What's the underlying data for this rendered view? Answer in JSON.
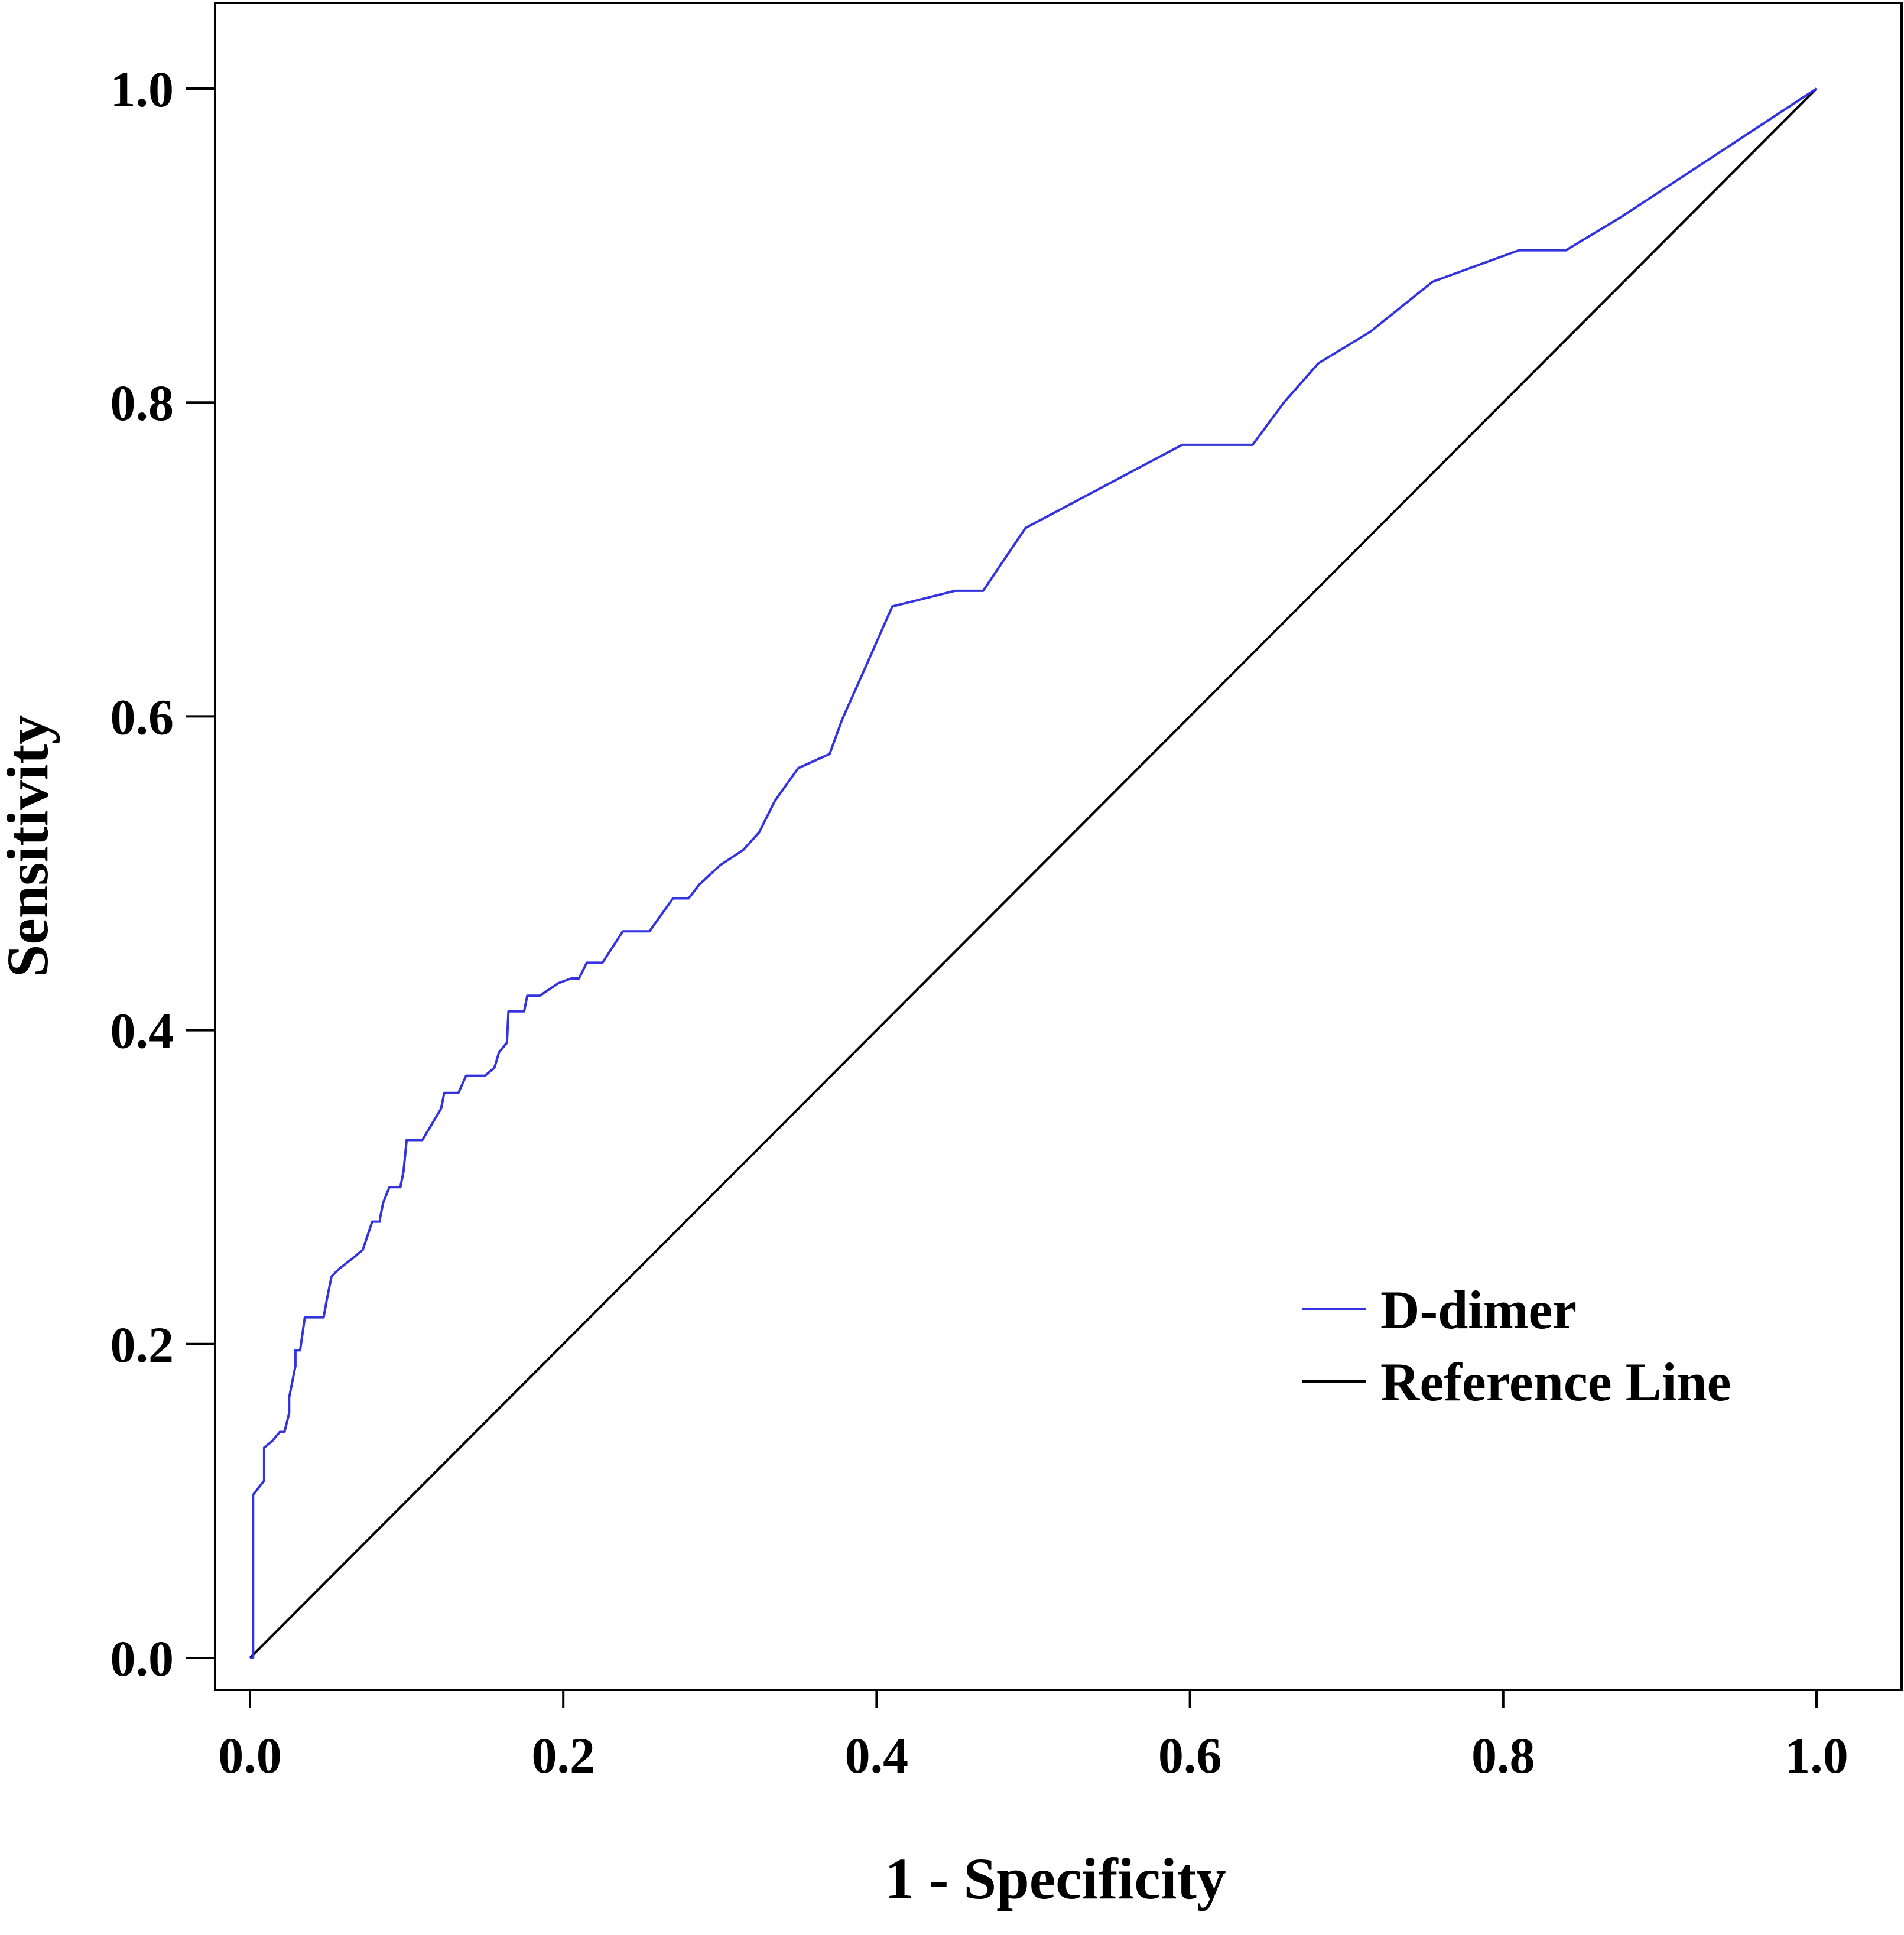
{
  "chart_data": {
    "type": "line",
    "title": "",
    "xlabel": "1 - Specificity",
    "ylabel": "Sensitivity",
    "xlim": [
      0.0,
      1.0
    ],
    "ylim": [
      0.0,
      1.0
    ],
    "xticks": [
      "0.0",
      "0.2",
      "0.4",
      "0.6",
      "0.8",
      "1.0"
    ],
    "yticks": [
      "0.0",
      "0.2",
      "0.4",
      "0.6",
      "0.8",
      "1.0"
    ],
    "grid": false,
    "legend_position": "bottom-right",
    "series": [
      {
        "name": "D-dimer",
        "color": "#3333e0",
        "x": [
          0.0,
          0.002,
          0.002,
          0.009,
          0.009,
          0.014,
          0.019,
          0.022,
          0.025,
          0.025,
          0.029,
          0.029,
          0.032,
          0.035,
          0.035,
          0.047,
          0.049,
          0.052,
          0.057,
          0.066,
          0.072,
          0.078,
          0.083,
          0.083,
          0.085,
          0.089,
          0.096,
          0.098,
          0.1,
          0.11,
          0.122,
          0.124,
          0.133,
          0.138,
          0.15,
          0.156,
          0.159,
          0.164,
          0.165,
          0.175,
          0.177,
          0.185,
          0.197,
          0.205,
          0.21,
          0.215,
          0.225,
          0.238,
          0.255,
          0.27,
          0.28,
          0.287,
          0.3,
          0.315,
          0.325,
          0.335,
          0.35,
          0.37,
          0.378,
          0.395,
          0.41,
          0.45,
          0.468,
          0.495,
          0.595,
          0.64,
          0.66,
          0.682,
          0.715,
          0.755,
          0.81,
          0.84,
          0.875,
          1.0
        ],
        "y": [
          0.0,
          0.0,
          0.104,
          0.113,
          0.134,
          0.138,
          0.144,
          0.144,
          0.156,
          0.166,
          0.186,
          0.196,
          0.196,
          0.217,
          0.217,
          0.217,
          0.228,
          0.243,
          0.248,
          0.255,
          0.26,
          0.278,
          0.278,
          0.28,
          0.29,
          0.3,
          0.3,
          0.31,
          0.33,
          0.33,
          0.35,
          0.36,
          0.36,
          0.371,
          0.371,
          0.376,
          0.386,
          0.392,
          0.412,
          0.412,
          0.422,
          0.422,
          0.43,
          0.433,
          0.433,
          0.443,
          0.443,
          0.463,
          0.463,
          0.484,
          0.484,
          0.493,
          0.505,
          0.515,
          0.526,
          0.546,
          0.567,
          0.576,
          0.598,
          0.636,
          0.67,
          0.68,
          0.68,
          0.72,
          0.773,
          0.773,
          0.8,
          0.825,
          0.845,
          0.877,
          0.897,
          0.897,
          0.918,
          1.0
        ]
      },
      {
        "name": "Reference Line",
        "color": "#000000",
        "x": [
          0.0,
          1.0
        ],
        "y": [
          0.0,
          1.0
        ]
      }
    ]
  }
}
